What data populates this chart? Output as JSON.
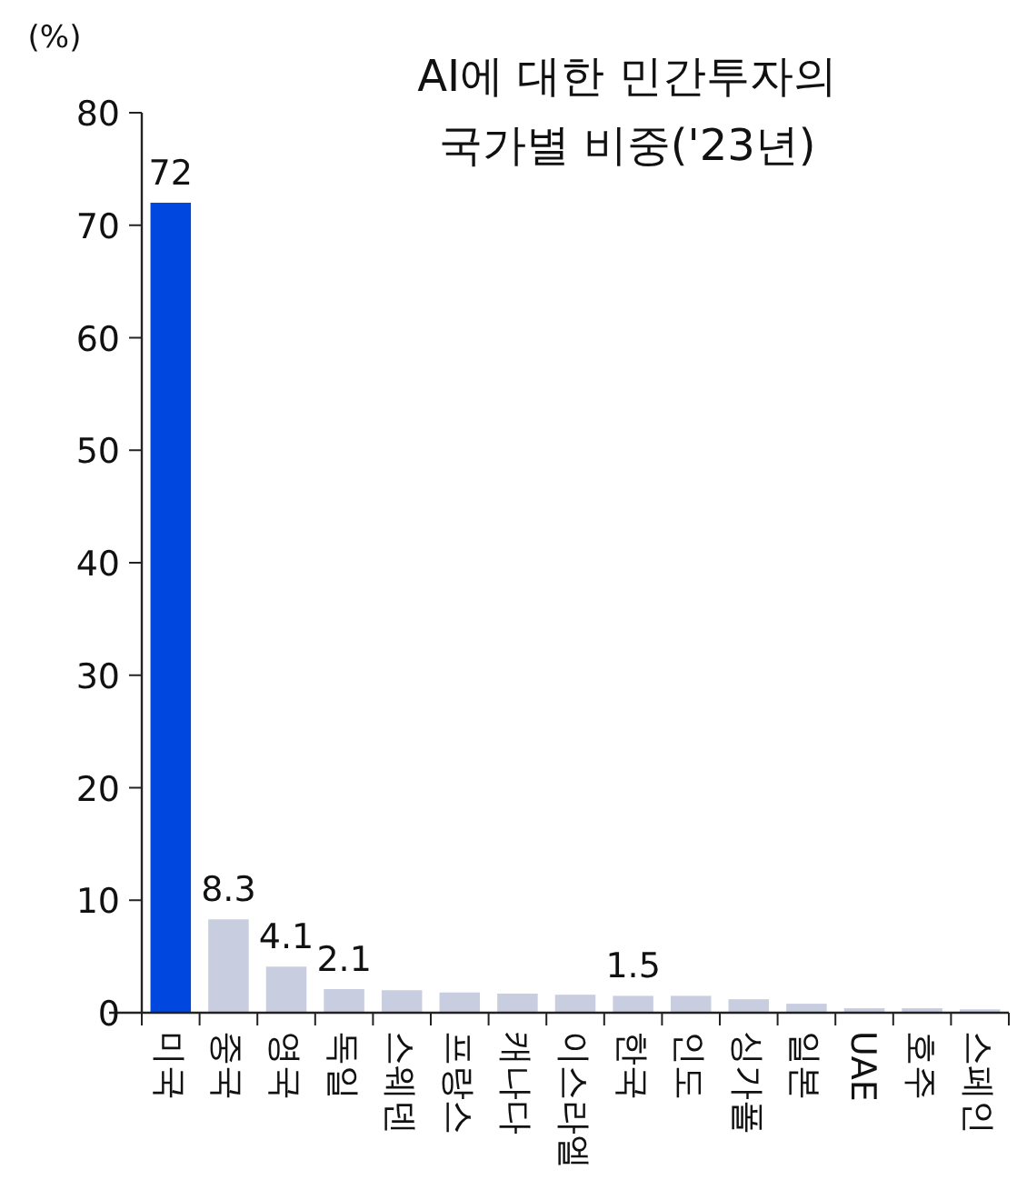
{
  "chart_data": {
    "type": "bar",
    "title": "AI에 대한 민간투자의\n국가별 비중('23년)",
    "ylabel": "(%)",
    "categories": [
      "미국",
      "중국",
      "영국",
      "독일",
      "스웨덴",
      "프랑스",
      "캐나다",
      "이스라엘",
      "한국",
      "인도",
      "싱가폴",
      "일본",
      "UAE",
      "호주",
      "스페인"
    ],
    "values": [
      72,
      8.3,
      4.1,
      2.1,
      2.0,
      1.8,
      1.7,
      1.6,
      1.5,
      1.5,
      1.2,
      0.8,
      0.4,
      0.4,
      0.3
    ],
    "colors": [
      "#0047e0",
      "#c9cde0",
      "#c9cde0",
      "#c9cde0",
      "#c9cde0",
      "#c9cde0",
      "#c9cde0",
      "#c9cde0",
      "#c9cde0",
      "#c9cde0",
      "#c9cde0",
      "#c9cde0",
      "#c9cde0",
      "#c9cde0",
      "#c9cde0"
    ],
    "value_labels": [
      "72",
      "8.3",
      "4.1",
      "2.1",
      null,
      null,
      null,
      null,
      "1.5",
      null,
      null,
      null,
      null,
      null,
      null
    ],
    "ylim": [
      0,
      80
    ],
    "yticks": [
      0,
      10,
      20,
      30,
      40,
      50,
      60,
      70,
      80
    ],
    "grid": false
  }
}
